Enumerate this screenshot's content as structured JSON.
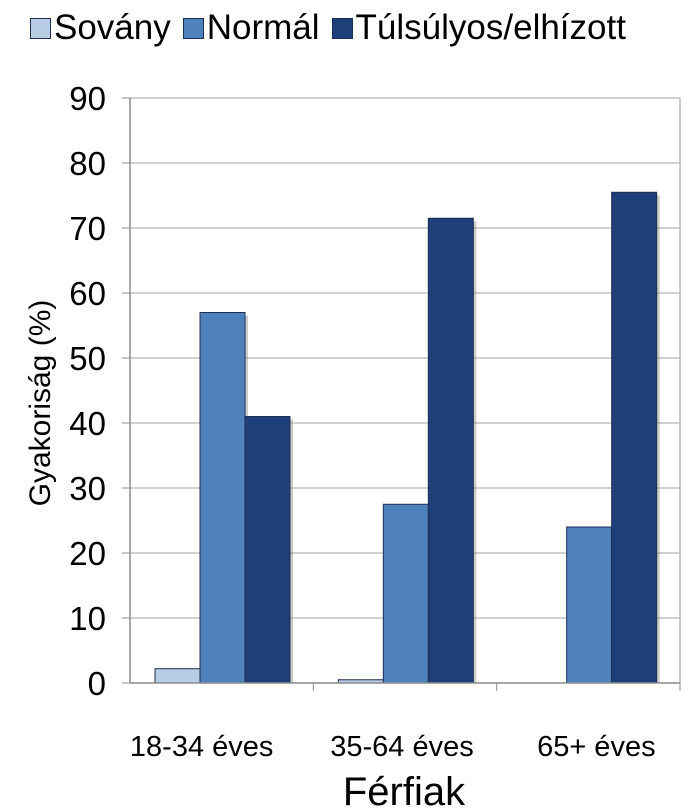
{
  "chart_data": {
    "type": "bar",
    "title": "",
    "xlabel": "Férfiak",
    "ylabel": "Gyakoriság (%)",
    "ylim": [
      0,
      90
    ],
    "yticks": [
      0,
      10,
      20,
      30,
      40,
      50,
      60,
      70,
      80,
      90
    ],
    "categories": [
      "18-34 éves",
      "35-64 éves",
      "65+ éves"
    ],
    "series": [
      {
        "name": "Sovány",
        "color": "#b8cce4",
        "values": [
          2.2,
          0.5,
          0
        ]
      },
      {
        "name": "Normál",
        "color": "#4f81bd",
        "values": [
          57,
          27.5,
          24
        ]
      },
      {
        "name": "Túlsúlyos/elhízott",
        "color": "#1f3f7a",
        "values": [
          41,
          71.5,
          75.5
        ]
      }
    ],
    "grid": true,
    "legend_position": "top"
  }
}
